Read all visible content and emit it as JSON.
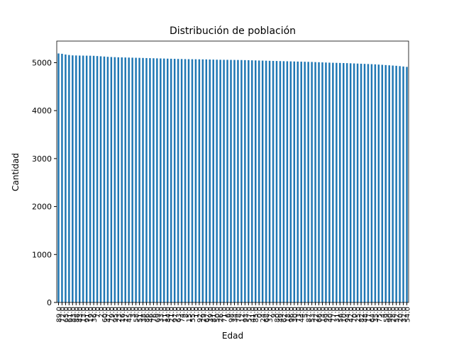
{
  "chart_data": {
    "type": "bar",
    "title": "Distribución de población",
    "xlabel": "Edad",
    "ylabel": "Cantidad",
    "categories": [
      "89.0",
      "72.0",
      "65.0",
      "61.0",
      "83.0",
      "88.0",
      "43.0",
      "13.0",
      "91.0",
      "19.0",
      "36.0",
      "7.0",
      "2.0",
      "60.0",
      "47.0",
      "79.0",
      "95.0",
      "23.0",
      "16.0",
      "27.0",
      "45.0",
      "3.0",
      "58.0",
      "51.0",
      "38.0",
      "86.0",
      "46.0",
      "76.0",
      "69.0",
      "33.0",
      "11.0",
      "84.0",
      "21.0",
      "97.0",
      "63.0",
      "74.0",
      "8.0",
      "15.0",
      "55.0",
      "1.0",
      "92.0",
      "29.0",
      "67.0",
      "39.0",
      "81.0",
      "50.0",
      "26.0",
      "71.0",
      "6.0",
      "98.0",
      "34.0",
      "78.0",
      "12.0",
      "93.0",
      "57.0",
      "41.0",
      "85.0",
      "0.0",
      "24.0",
      "68.0",
      "37.0",
      "9.0",
      "80.0",
      "49.0",
      "62.0",
      "18.0",
      "96.0",
      "30.0",
      "73.0",
      "44.0",
      "5.0",
      "87.0",
      "53.0",
      "22.0",
      "66.0",
      "14.0",
      "99.0",
      "40.0",
      "77.0",
      "31.0",
      "56.0",
      "10.0",
      "94.0",
      "42.0",
      "70.0",
      "25.0",
      "82.0",
      "48.0",
      "17.0",
      "64.0",
      "35.0",
      "75.0",
      "4.0",
      "59.0",
      "90.0",
      "28.0",
      "52.0",
      "20.0",
      "32.0",
      "54.0"
    ],
    "values": [
      5192,
      5185,
      5170,
      5160,
      5152,
      5150,
      5148,
      5147,
      5146,
      5145,
      5143,
      5138,
      5133,
      5128,
      5122,
      5118,
      5115,
      5112,
      5110,
      5108,
      5106,
      5104,
      5102,
      5100,
      5098,
      5096,
      5094,
      5092,
      5090,
      5088,
      5086,
      5084,
      5082,
      5080,
      5078,
      5076,
      5074,
      5073,
      5072,
      5071,
      5070,
      5069,
      5068,
      5066,
      5064,
      5062,
      5061,
      5060,
      5059,
      5058,
      5057,
      5056,
      5055,
      5053,
      5051,
      5049,
      5047,
      5045,
      5043,
      5041,
      5039,
      5037,
      5035,
      5033,
      5031,
      5029,
      5027,
      5025,
      5023,
      5021,
      5019,
      5017,
      5015,
      5012,
      5009,
      5006,
      5003,
      5000,
      4998,
      4996,
      4994,
      4992,
      4990,
      4987,
      4984,
      4981,
      4978,
      4975,
      4972,
      4969,
      4965,
      4960,
      4955,
      4950,
      4945,
      4940,
      4935,
      4928,
      4920,
      4912
    ],
    "color": "#1f77b4",
    "ylim": [
      0,
      5450
    ],
    "yticks": [
      0,
      1000,
      2000,
      3000,
      4000,
      5000
    ]
  }
}
